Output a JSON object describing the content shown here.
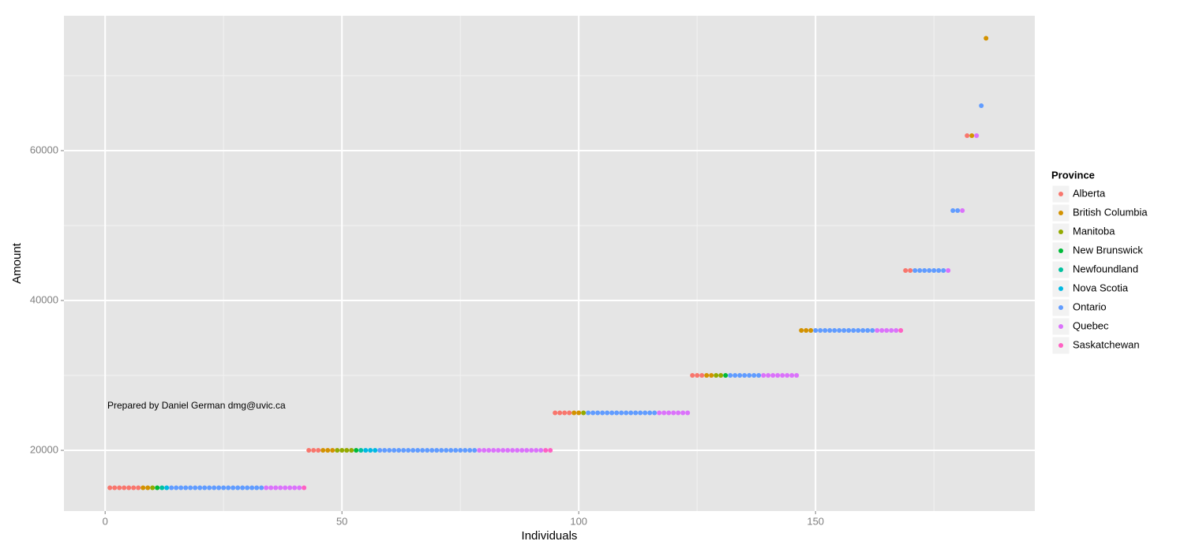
{
  "chart_data": {
    "type": "scatter",
    "x_label": "Individuals",
    "y_label": "Amount",
    "annotation": "Prepared by Daniel German dmg@uvic.ca",
    "legend_title": "Province",
    "legend_position": "right",
    "grid": true,
    "minor_grid": true,
    "xlim": [
      -8.7,
      196.3
    ],
    "ylim": [
      11900,
      78000
    ],
    "xticks": [
      0,
      50,
      100,
      150
    ],
    "yticks": [
      20000,
      40000,
      60000
    ],
    "series": [
      {
        "name": "Alberta",
        "color": "#F8766D",
        "x": [
          1,
          2,
          3,
          4,
          5,
          6,
          7,
          43,
          44,
          45,
          95,
          96,
          97,
          98,
          124,
          125,
          126,
          169,
          170,
          182
        ],
        "values": [
          15000,
          15000,
          15000,
          15000,
          15000,
          15000,
          15000,
          20000,
          20000,
          20000,
          25000,
          25000,
          25000,
          25000,
          30000,
          30000,
          30000,
          44000,
          44000,
          62000
        ]
      },
      {
        "name": "British Columbia",
        "color": "#D39200",
        "x": [
          8,
          9,
          46,
          47,
          48,
          99,
          100,
          127,
          128,
          147,
          148,
          149,
          183,
          186
        ],
        "values": [
          15000,
          15000,
          20000,
          20000,
          20000,
          25000,
          25000,
          30000,
          30000,
          36000,
          36000,
          36000,
          62000,
          75000
        ]
      },
      {
        "name": "Manitoba",
        "color": "#93AA00",
        "x": [
          10,
          49,
          50,
          51,
          52,
          101,
          129,
          130
        ],
        "values": [
          15000,
          20000,
          20000,
          20000,
          20000,
          25000,
          30000,
          30000
        ]
      },
      {
        "name": "New Brunswick",
        "color": "#00BA38",
        "x": [
          11,
          53,
          131
        ],
        "values": [
          15000,
          20000,
          30000
        ]
      },
      {
        "name": "Newfoundland",
        "color": "#00C19F",
        "x": [
          12,
          54
        ],
        "values": [
          15000,
          20000
        ]
      },
      {
        "name": "Nova Scotia",
        "color": "#00B9E3",
        "x": [
          13,
          55,
          56,
          57
        ],
        "values": [
          15000,
          20000,
          20000,
          20000
        ]
      },
      {
        "name": "Ontario",
        "color": "#619CFF",
        "x": [
          14,
          15,
          16,
          17,
          18,
          19,
          20,
          21,
          22,
          23,
          24,
          25,
          26,
          27,
          28,
          29,
          30,
          31,
          32,
          33,
          58,
          59,
          60,
          61,
          62,
          63,
          64,
          65,
          66,
          67,
          68,
          69,
          70,
          71,
          72,
          73,
          74,
          75,
          76,
          77,
          78,
          102,
          103,
          104,
          105,
          106,
          107,
          108,
          109,
          110,
          111,
          112,
          113,
          114,
          115,
          116,
          132,
          133,
          134,
          135,
          136,
          137,
          138,
          150,
          151,
          152,
          153,
          154,
          155,
          156,
          157,
          158,
          159,
          160,
          161,
          162,
          171,
          172,
          173,
          174,
          175,
          176,
          177,
          179,
          180,
          185
        ],
        "values": [
          15000,
          15000,
          15000,
          15000,
          15000,
          15000,
          15000,
          15000,
          15000,
          15000,
          15000,
          15000,
          15000,
          15000,
          15000,
          15000,
          15000,
          15000,
          15000,
          15000,
          20000,
          20000,
          20000,
          20000,
          20000,
          20000,
          20000,
          20000,
          20000,
          20000,
          20000,
          20000,
          20000,
          20000,
          20000,
          20000,
          20000,
          20000,
          20000,
          20000,
          20000,
          25000,
          25000,
          25000,
          25000,
          25000,
          25000,
          25000,
          25000,
          25000,
          25000,
          25000,
          25000,
          25000,
          25000,
          25000,
          30000,
          30000,
          30000,
          30000,
          30000,
          30000,
          30000,
          36000,
          36000,
          36000,
          36000,
          36000,
          36000,
          36000,
          36000,
          36000,
          36000,
          36000,
          36000,
          36000,
          44000,
          44000,
          44000,
          44000,
          44000,
          44000,
          44000,
          52000,
          52000,
          66000
        ]
      },
      {
        "name": "Quebec",
        "color": "#DB72FB",
        "x": [
          34,
          35,
          36,
          37,
          38,
          39,
          40,
          41,
          79,
          80,
          81,
          82,
          83,
          84,
          85,
          86,
          87,
          88,
          89,
          90,
          91,
          92,
          117,
          118,
          119,
          120,
          121,
          122,
          123,
          139,
          140,
          141,
          142,
          143,
          144,
          145,
          146,
          163,
          164,
          165,
          166,
          167,
          178,
          181,
          184
        ],
        "values": [
          15000,
          15000,
          15000,
          15000,
          15000,
          15000,
          15000,
          15000,
          20000,
          20000,
          20000,
          20000,
          20000,
          20000,
          20000,
          20000,
          20000,
          20000,
          20000,
          20000,
          20000,
          20000,
          25000,
          25000,
          25000,
          25000,
          25000,
          25000,
          25000,
          30000,
          30000,
          30000,
          30000,
          30000,
          30000,
          30000,
          30000,
          36000,
          36000,
          36000,
          36000,
          36000,
          44000,
          52000,
          62000
        ]
      },
      {
        "name": "Saskatchewan",
        "color": "#FF61C3",
        "x": [
          42,
          93,
          94,
          168
        ],
        "values": [
          15000,
          20000,
          20000,
          36000
        ]
      }
    ]
  }
}
